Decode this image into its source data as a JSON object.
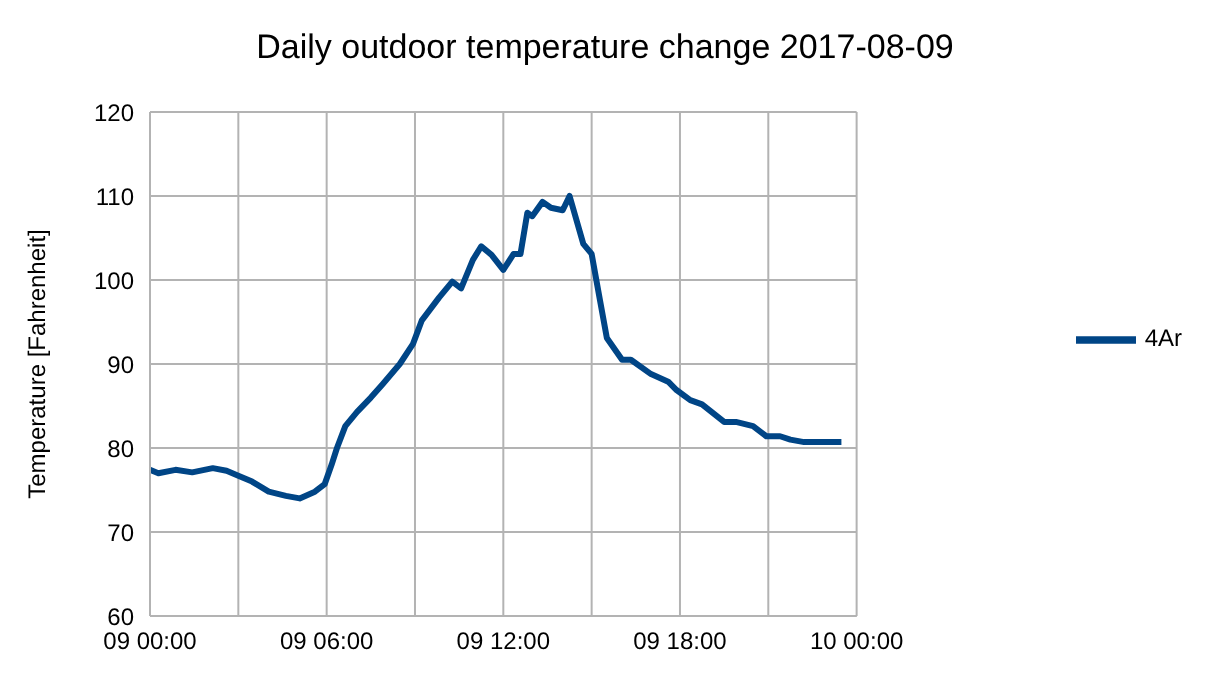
{
  "chart_data": {
    "type": "line",
    "title": "Daily outdoor temperature change 2017-08-09",
    "ylabel": "Temperature [Fahrenheit]",
    "x": [
      "2017-08-09T00:00",
      "2017-08-09T00:17",
      "2017-08-09T00:52",
      "2017-08-09T01:26",
      "2017-08-09T02:08",
      "2017-08-09T02:36",
      "2017-08-09T03:00",
      "2017-08-09T03:28",
      "2017-08-09T04:02",
      "2017-08-09T04:37",
      "2017-08-09T05:05",
      "2017-08-09T05:36",
      "2017-08-09T05:56",
      "2017-08-09T06:10",
      "2017-08-09T06:21",
      "2017-08-09T06:38",
      "2017-08-09T07:02",
      "2017-08-09T07:30",
      "2017-08-09T07:54",
      "2017-08-09T08:29",
      "2017-08-09T08:56",
      "2017-08-09T09:14",
      "2017-08-09T09:49",
      "2017-08-09T10:16",
      "2017-08-09T10:34",
      "2017-08-09T10:58",
      "2017-08-09T11:15",
      "2017-08-09T11:36",
      "2017-08-09T12:00",
      "2017-08-09T12:21",
      "2017-08-09T12:35",
      "2017-08-09T12:49",
      "2017-08-09T12:59",
      "2017-08-09T13:20",
      "2017-08-09T13:37",
      "2017-08-09T14:01",
      "2017-08-09T14:15",
      "2017-08-09T14:43",
      "2017-08-09T15:00",
      "2017-08-09T15:17",
      "2017-08-09T15:31",
      "2017-08-09T16:02",
      "2017-08-09T16:20",
      "2017-08-09T17:01",
      "2017-08-09T17:36",
      "2017-08-09T17:53",
      "2017-08-09T18:21",
      "2017-08-09T18:45",
      "2017-08-09T19:30",
      "2017-08-09T19:54",
      "2017-08-09T20:29",
      "2017-08-09T20:56",
      "2017-08-09T21:24",
      "2017-08-09T21:45",
      "2017-08-09T22:13",
      "2017-08-09T23:29"
    ],
    "series": [
      {
        "name": "4Ar",
        "color": "#004586",
        "values": [
          77.4,
          77,
          77.4,
          77.1,
          77.6,
          77.3,
          76.7,
          76,
          74.8,
          74.3,
          74,
          74.8,
          75.7,
          78,
          80,
          82.6,
          84.3,
          86,
          87.6,
          90,
          92.4,
          95.2,
          97.9,
          99.8,
          99,
          102.4,
          104,
          103,
          101.2,
          103.1,
          103.1,
          108,
          107.6,
          109.3,
          108.6,
          108.3,
          110,
          104.3,
          103.1,
          97.6,
          93.1,
          90.5,
          90.5,
          88.8,
          87.9,
          86.9,
          85.7,
          85.2,
          83.1,
          83.1,
          82.6,
          81.4,
          81.4,
          81,
          80.7,
          80.7
        ]
      }
    ],
    "xlim": [
      "2017-08-09T00:00",
      "2017-08-10T00:00"
    ],
    "xticks": [
      {
        "value": "2017-08-09T00:00",
        "label": "09 00:00"
      },
      {
        "value": "2017-08-09T03:00",
        "label": null
      },
      {
        "value": "2017-08-09T06:00",
        "label": "09 06:00"
      },
      {
        "value": "2017-08-09T09:00",
        "label": null
      },
      {
        "value": "2017-08-09T12:00",
        "label": "09 12:00"
      },
      {
        "value": "2017-08-09T15:00",
        "label": null
      },
      {
        "value": "2017-08-09T18:00",
        "label": "09 18:00"
      },
      {
        "value": "2017-08-09T21:00",
        "label": null
      },
      {
        "value": "2017-08-10T00:00",
        "label": "10 00:00"
      }
    ],
    "ylim": [
      60,
      120
    ],
    "yticks": [
      60,
      70,
      80,
      90,
      100,
      110,
      120
    ],
    "grid": true,
    "legend": "right",
    "marker": "none",
    "line_style": "solid"
  }
}
